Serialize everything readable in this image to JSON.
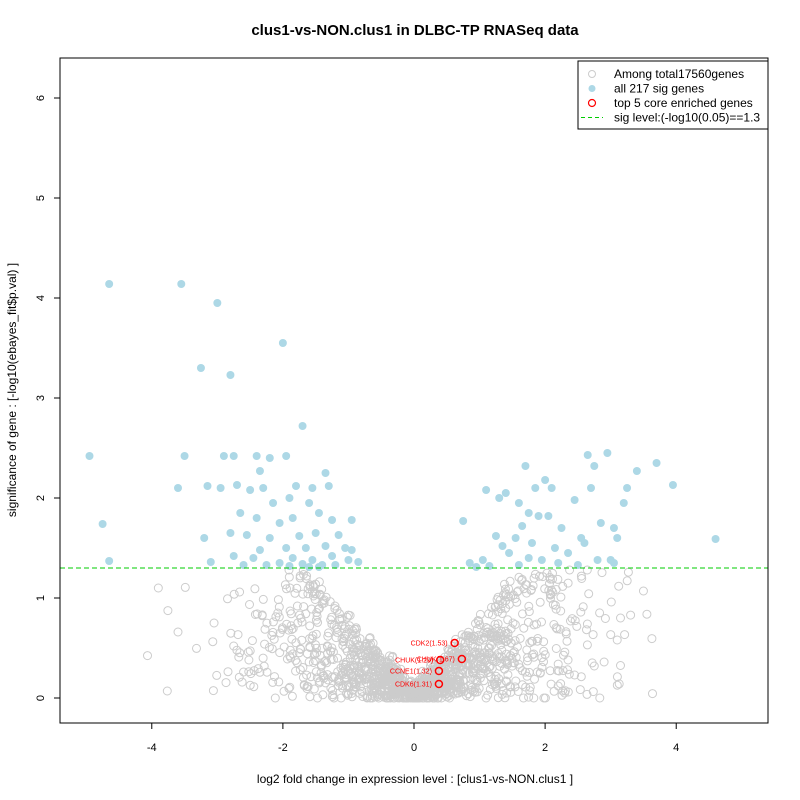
{
  "chart_data": {
    "type": "scatter",
    "title": "clus1-vs-NON.clus1 in DLBC-TP RNASeq data",
    "xlabel": "log2 fold change in expression level : [clus1-vs-NON.clus1 ]",
    "ylabel": "significance of gene : [-log10(ebayes_fit$p.val) ]",
    "xlim": [
      -5.4,
      5.4
    ],
    "ylim": [
      -0.25,
      6.4
    ],
    "x_ticks": [
      -4,
      -2,
      0,
      2,
      4
    ],
    "y_ticks": [
      0,
      1,
      2,
      3,
      4,
      5,
      6
    ],
    "sig_level": 1.3,
    "colors": {
      "background_points": "#cccccc",
      "sig_points": "#add8e6",
      "core_genes": "#ff0000",
      "sig_line": "#00cc00"
    },
    "legend": {
      "position": "top-right",
      "entries": [
        {
          "label": "Among total17560genes",
          "kind": "open-gray"
        },
        {
          "label": "all 217 sig genes",
          "kind": "filled-blue"
        },
        {
          "label": "top 5 core enriched genes",
          "kind": "open-red"
        },
        {
          "label": "sig level:(-log10(0.05)==1.3",
          "kind": "dashed-green"
        }
      ]
    },
    "background_sample": [
      [
        -3.9,
        1.1
      ],
      [
        -3.6,
        0.66
      ],
      [
        -3.05,
        0.75
      ],
      [
        -2.75,
        0.52
      ],
      [
        -2.6,
        0.26
      ],
      [
        3.5,
        1.07
      ],
      [
        3.15,
        0.8
      ],
      [
        3.1,
        0.58
      ],
      [
        2.9,
        0.36
      ],
      [
        2.75,
        0.32
      ],
      [
        2.45,
        0.23
      ],
      [
        2.35,
        0.38
      ],
      [
        0.2,
        0.02
      ],
      [
        -0.3,
        0.05
      ],
      [
        0.5,
        0.12
      ]
    ],
    "sig_points": [
      [
        -4.65,
        4.14
      ],
      [
        -3.55,
        4.14
      ],
      [
        -3.0,
        3.95
      ],
      [
        -2.0,
        3.55
      ],
      [
        -3.25,
        3.3
      ],
      [
        -2.8,
        3.23
      ],
      [
        -1.7,
        2.72
      ],
      [
        -4.95,
        2.42
      ],
      [
        -3.5,
        2.42
      ],
      [
        -2.9,
        2.42
      ],
      [
        -2.75,
        2.42
      ],
      [
        -2.4,
        2.42
      ],
      [
        -1.95,
        2.42
      ],
      [
        -2.2,
        2.4
      ],
      [
        -2.35,
        2.27
      ],
      [
        -1.35,
        2.25
      ],
      [
        -3.6,
        2.1
      ],
      [
        -3.15,
        2.12
      ],
      [
        -2.95,
        2.1
      ],
      [
        -2.7,
        2.13
      ],
      [
        -2.5,
        2.08
      ],
      [
        -2.3,
        2.1
      ],
      [
        -1.8,
        2.12
      ],
      [
        -1.55,
        2.1
      ],
      [
        -1.3,
        2.12
      ],
      [
        -2.15,
        1.95
      ],
      [
        -1.9,
        2.0
      ],
      [
        -1.6,
        1.95
      ],
      [
        -2.65,
        1.85
      ],
      [
        -2.4,
        1.8
      ],
      [
        -2.05,
        1.75
      ],
      [
        -1.85,
        1.8
      ],
      [
        -1.45,
        1.85
      ],
      [
        -1.25,
        1.78
      ],
      [
        -0.95,
        1.78
      ],
      [
        -4.75,
        1.74
      ],
      [
        -2.8,
        1.65
      ],
      [
        -2.55,
        1.63
      ],
      [
        -2.2,
        1.6
      ],
      [
        -1.75,
        1.62
      ],
      [
        -1.5,
        1.65
      ],
      [
        -1.15,
        1.63
      ],
      [
        -3.2,
        1.6
      ],
      [
        -2.35,
        1.48
      ],
      [
        -1.95,
        1.5
      ],
      [
        -1.65,
        1.5
      ],
      [
        -1.35,
        1.52
      ],
      [
        -1.05,
        1.5
      ],
      [
        -0.95,
        1.48
      ],
      [
        -2.75,
        1.42
      ],
      [
        -2.45,
        1.4
      ],
      [
        -1.85,
        1.4
      ],
      [
        -1.55,
        1.38
      ],
      [
        -1.25,
        1.42
      ],
      [
        -1.0,
        1.38
      ],
      [
        -0.85,
        1.36
      ],
      [
        -4.65,
        1.37
      ],
      [
        -3.1,
        1.36
      ],
      [
        -2.05,
        1.35
      ],
      [
        -1.7,
        1.34
      ],
      [
        -1.4,
        1.33
      ],
      [
        -1.2,
        1.33
      ],
      [
        -2.6,
        1.33
      ],
      [
        -2.25,
        1.33
      ],
      [
        -1.9,
        1.32
      ],
      [
        -1.6,
        1.31
      ],
      [
        -1.45,
        1.31
      ],
      [
        0.75,
        1.77
      ],
      [
        0.85,
        1.35
      ],
      [
        0.95,
        1.31
      ],
      [
        1.05,
        1.38
      ],
      [
        1.15,
        1.32
      ],
      [
        1.25,
        1.62
      ],
      [
        1.35,
        1.52
      ],
      [
        1.45,
        1.45
      ],
      [
        1.55,
        1.6
      ],
      [
        1.65,
        1.72
      ],
      [
        1.7,
        2.32
      ],
      [
        1.85,
        2.1
      ],
      [
        1.9,
        1.82
      ],
      [
        2.0,
        2.18
      ],
      [
        2.1,
        2.1
      ],
      [
        2.15,
        1.5
      ],
      [
        2.25,
        1.7
      ],
      [
        2.35,
        1.45
      ],
      [
        1.75,
        1.4
      ],
      [
        1.8,
        1.55
      ],
      [
        2.45,
        1.98
      ],
      [
        2.55,
        1.6
      ],
      [
        2.65,
        2.43
      ],
      [
        2.75,
        2.32
      ],
      [
        2.85,
        1.75
      ],
      [
        2.95,
        2.45
      ],
      [
        3.05,
        1.7
      ],
      [
        3.2,
        1.95
      ],
      [
        3.4,
        2.27
      ],
      [
        3.25,
        2.1
      ],
      [
        3.7,
        2.35
      ],
      [
        3.95,
        2.13
      ],
      [
        4.6,
        1.59
      ],
      [
        2.6,
        1.55
      ],
      [
        2.8,
        1.38
      ],
      [
        3.0,
        1.38
      ],
      [
        2.5,
        1.33
      ],
      [
        2.2,
        1.35
      ],
      [
        1.95,
        1.38
      ],
      [
        1.6,
        1.33
      ],
      [
        1.1,
        2.08
      ],
      [
        1.3,
        2.0
      ],
      [
        1.4,
        2.05
      ],
      [
        1.6,
        1.95
      ],
      [
        1.75,
        1.85
      ],
      [
        2.05,
        1.82
      ],
      [
        2.7,
        2.1
      ],
      [
        3.1,
        1.6
      ],
      [
        3.05,
        1.35
      ]
    ],
    "core_genes": [
      {
        "label": "CDK2(1.53)",
        "x": 0.62,
        "y": 0.55
      },
      {
        "label": "CHUK(1.67)",
        "x": 0.73,
        "y": 0.39
      },
      {
        "label": "CHUK(1.29)",
        "x": 0.4,
        "y": 0.38
      },
      {
        "label": "CCNE1(1.32)",
        "x": 0.38,
        "y": 0.27
      },
      {
        "label": "CDK6(1.31)",
        "x": 0.38,
        "y": 0.14
      }
    ]
  }
}
